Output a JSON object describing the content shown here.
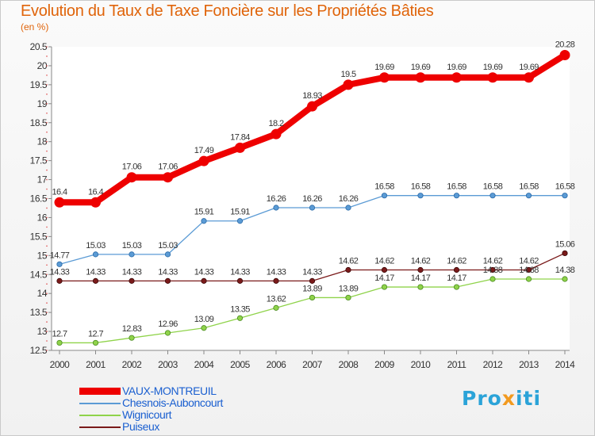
{
  "title": "Evolution du Taux de Taxe Foncière sur les Propriétés Bâties",
  "unit_label": "(en %)",
  "logo": {
    "text": "Proxiti",
    "brand_colors": [
      "#2ba3d8",
      "#f29a1f"
    ]
  },
  "chart_data": {
    "type": "line",
    "title": "Evolution du Taux de Taxe Foncière sur les Propriétés Bâties",
    "ylabel": "(en %)",
    "xlabel": "",
    "x": [
      "2000",
      "2001",
      "2002",
      "2003",
      "2004",
      "2005",
      "2006",
      "2007",
      "2008",
      "2009",
      "2010",
      "2011",
      "2012",
      "2013",
      "2014"
    ],
    "ylim": [
      12.5,
      20.5
    ],
    "yticks": [
      "12.5",
      "13",
      "13.5",
      "14",
      "14.5",
      "15",
      "15.5",
      "16",
      "16.5",
      "17",
      "17.5",
      "18",
      "18.5",
      "19",
      "19.5",
      "20",
      "20.5"
    ],
    "grid": false,
    "legend_position": "bottom-left",
    "series": [
      {
        "name": "VAUX-MONTREUIL",
        "color": "#ee0000",
        "values": [
          16.4,
          16.4,
          17.06,
          17.06,
          17.49,
          17.84,
          18.2,
          18.93,
          19.5,
          19.69,
          19.69,
          19.69,
          19.69,
          19.69,
          20.28
        ],
        "labels": [
          "16.4",
          "16.4",
          "17.06",
          "17.06",
          "17.49",
          "17.84",
          "18.2",
          "18.93",
          "19.5",
          "19.69",
          "19.69",
          "19.69",
          "19.69",
          "19.69",
          "20.28"
        ]
      },
      {
        "name": "Chesnois-Auboncourt",
        "color": "#5b9bd5",
        "values": [
          14.77,
          15.03,
          15.03,
          15.03,
          15.91,
          15.91,
          16.26,
          16.26,
          16.26,
          16.58,
          16.58,
          16.58,
          16.58,
          16.58,
          16.58
        ],
        "labels": [
          "14.77",
          "15.03",
          "15.03",
          "15.03",
          "15.91",
          "15.91",
          "16.26",
          "16.26",
          "16.26",
          "16.58",
          "16.58",
          "16.58",
          "16.58",
          "16.58",
          "16.58"
        ]
      },
      {
        "name": "Wignicourt",
        "color": "#8fd34a",
        "values": [
          12.7,
          12.7,
          12.83,
          12.96,
          13.09,
          13.35,
          13.62,
          13.89,
          13.89,
          14.17,
          14.17,
          14.17,
          14.38,
          14.38,
          14.38
        ],
        "labels": [
          "12.7",
          "12.7",
          "12.83",
          "12.96",
          "13.09",
          "13.35",
          "13.62",
          "13.89",
          "13.89",
          "14.17",
          "14.17",
          "14.17",
          "14.38",
          "14.38",
          "14.38"
        ]
      },
      {
        "name": "Puiseux",
        "color": "#7a1a1a",
        "values": [
          14.33,
          14.33,
          14.33,
          14.33,
          14.33,
          14.33,
          14.33,
          14.33,
          14.62,
          14.62,
          14.62,
          14.62,
          14.62,
          14.62,
          15.06
        ],
        "labels": [
          "14.33",
          "14.33",
          "14.33",
          "14.33",
          "14.33",
          "14.33",
          "14.33",
          "14.33",
          "14.62",
          "14.62",
          "14.62",
          "14.62",
          "14.62",
          "14.62",
          "15.06"
        ]
      }
    ]
  }
}
